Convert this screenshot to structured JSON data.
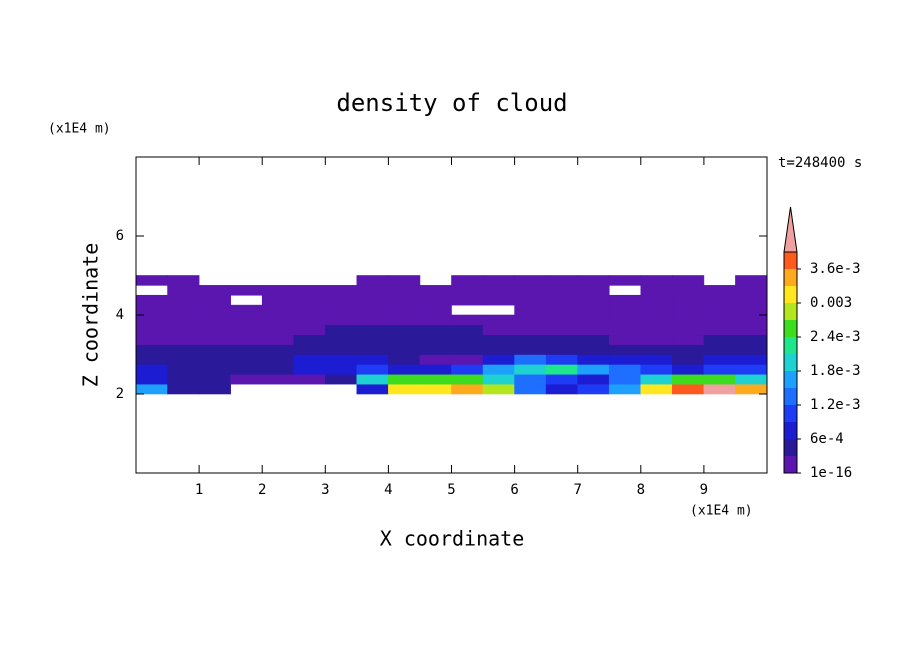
{
  "chart_data": {
    "type": "contour",
    "title": "density of cloud",
    "x_label": "X coordinate",
    "y_label": "Z coordinate",
    "x_unit": "(x1E4 m)",
    "y_unit": "(x1E4 m)",
    "time_label": "t=248400 s",
    "xlim": [
      0,
      10
    ],
    "ylim": [
      0,
      8
    ],
    "xticks": [
      1,
      2,
      3,
      4,
      5,
      6,
      7,
      8,
      9
    ],
    "yticks": [
      2,
      4,
      6
    ],
    "x": [
      0.25,
      0.75,
      1.25,
      1.75,
      2.25,
      2.75,
      3.25,
      3.75,
      4.25,
      4.75,
      5.25,
      5.75,
      6.25,
      6.75,
      7.25,
      7.75,
      8.25,
      8.75,
      9.25,
      9.75
    ],
    "z": [
      2.125,
      2.375,
      2.625,
      2.875,
      3.125,
      3.375,
      3.625,
      3.875,
      4.125,
      4.375,
      4.625,
      4.875
    ],
    "values": [
      [
        0.0015,
        0.0005,
        0.0003,
        0,
        0,
        0,
        0,
        0.0008,
        0.003,
        0.0032,
        0.0035,
        0.0028,
        0.0012,
        0.0008,
        0.001,
        0.0015,
        0.003,
        0.0036,
        0.004,
        0.0035
      ],
      [
        0.0008,
        0.0004,
        0.0003,
        0.0002,
        0.0001,
        0.0002,
        0.0004,
        0.0018,
        0.0025,
        0.0026,
        0.0024,
        0.002,
        0.0012,
        0.001,
        0.0008,
        0.0012,
        0.002,
        0.0024,
        0.0026,
        0.002
      ],
      [
        0.0006,
        0.0005,
        0.0004,
        0.0004,
        0.0005,
        0.0006,
        0.0008,
        0.001,
        0.0008,
        0.0007,
        0.001,
        0.0016,
        0.002,
        0.0021,
        0.0016,
        0.0012,
        0.0009,
        0.0008,
        0.001,
        0.0009
      ],
      [
        0.0004,
        0.0004,
        0.0004,
        0.0005,
        0.0005,
        0.0006,
        0.0007,
        0.0006,
        0.0005,
        0.0002,
        0.0002,
        0.0006,
        0.0012,
        0.001,
        0.0008,
        0.0006,
        0.0006,
        0.0005,
        0.0006,
        0.0006
      ],
      [
        0.0003,
        0.0003,
        0.0003,
        0.0003,
        0.0004,
        0.0004,
        0.0004,
        0.0004,
        0.0004,
        0.0004,
        0.0004,
        0.0004,
        0.0005,
        0.0004,
        0.0004,
        0.0003,
        0.0004,
        0.0004,
        0.0004,
        0.0004
      ],
      [
        0.0002,
        0.0002,
        0.0002,
        0.0002,
        0.0002,
        0.0003,
        0.0004,
        0.0004,
        0.0005,
        0.0005,
        0.0004,
        0.0003,
        0.0003,
        0.0003,
        0.0003,
        0.0002,
        0.0002,
        0.0002,
        0.0003,
        0.0003
      ],
      [
        0.0001,
        0.0001,
        0.0002,
        0.0002,
        0.0002,
        0.0002,
        0.0003,
        0.0003,
        0.0003,
        0.0003,
        0.0003,
        0.0002,
        0.0002,
        0.0002,
        0.0001,
        0.0001,
        0.0001,
        0.0002,
        0.0002,
        0.0002
      ],
      [
        0.0001,
        0.0001,
        0.0001,
        0.0001,
        0.0001,
        0.0002,
        0.0002,
        0.0002,
        0.0002,
        0.0002,
        0.0002,
        0.0001,
        0.0001,
        0.0001,
        0.0001,
        0.0001,
        0.0001,
        0.0001,
        0.0001,
        0.0001
      ],
      [
        0.0001,
        0.0001,
        0.0001,
        0.0001,
        0.0001,
        0.0001,
        0.0001,
        0.0001,
        0.0001,
        0.0001,
        0,
        0,
        0.0001,
        0.0001,
        0.0001,
        0.0001,
        0.0001,
        0.0001,
        0.0001,
        0.0001
      ],
      [
        0.0001,
        0.0001,
        0.0001,
        0,
        0.0001,
        0.0001,
        0.0001,
        0.0001,
        0.0001,
        0.0001,
        0.0001,
        0.0001,
        0.0001,
        0.0001,
        0.0001,
        0.0001,
        0.0001,
        0.0001,
        0.0001,
        0.0001
      ],
      [
        0,
        0.0001,
        0.0001,
        0.0001,
        0.0001,
        0.0001,
        0.0001,
        0.0001,
        0.0001,
        0.0001,
        0.0001,
        0.0001,
        0.0001,
        0.0001,
        0.0001,
        0,
        0.0001,
        0.0001,
        0.0001,
        0.0001
      ],
      [
        0.0001,
        0.0001,
        0,
        0,
        0,
        0,
        0,
        0.0001,
        0.0001,
        0,
        0.0001,
        0.0001,
        0.0001,
        0.0001,
        0.0001,
        0.0001,
        0.0001,
        0.0001,
        0,
        0.0001
      ]
    ],
    "levels": [
      1e-16,
      0.0003,
      0.0006,
      0.0009,
      0.0012,
      0.0015,
      0.0018,
      0.0021,
      0.0024,
      0.0027,
      0.003,
      0.0033,
      0.0036,
      0.0039
    ],
    "colors": [
      "#5b16b0",
      "#2a1a9a",
      "#1c1cd2",
      "#1e3cf5",
      "#1e6eff",
      "#1ea0ff",
      "#1ed2d2",
      "#1ee68c",
      "#3cdc1e",
      "#b4e61e",
      "#ffe61e",
      "#ffaa1e",
      "#ff5a1e"
    ],
    "extend_color": "#f0a0a0",
    "colorbar_ticks": [
      {
        "value": 1e-16,
        "label": "1e-16"
      },
      {
        "value": 0.0006,
        "label": "6e-4"
      },
      {
        "value": 0.0012,
        "label": "1.2e-3"
      },
      {
        "value": 0.0018,
        "label": "1.8e-3"
      },
      {
        "value": 0.0024,
        "label": "2.4e-3"
      },
      0.003,
      {
        "value": 0.0036,
        "label": "3.6e-3"
      }
    ]
  }
}
